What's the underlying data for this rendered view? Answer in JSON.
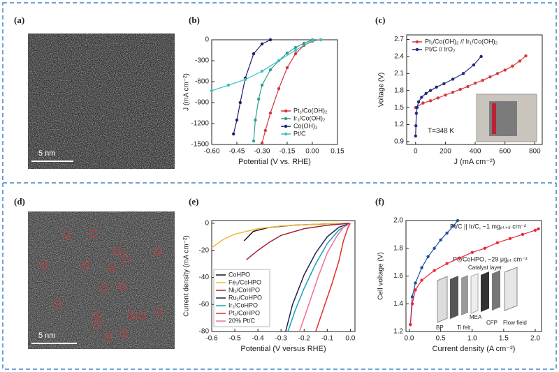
{
  "images": [
    {
      "label": "(a)",
      "scale_bar": "5 nm"
    },
    {
      "label": "(d)",
      "scale_bar": "5 nm"
    }
  ],
  "chart_data": [
    {
      "type": "line",
      "label": "(b)",
      "markers": true,
      "legend": "lower right",
      "xlabel": "Potential (V vs. RHE)",
      "ylabel": "J (mA cm⁻²)",
      "xlim": [
        -0.6,
        0.15
      ],
      "xticks": [
        {
          "value": -0.6,
          "label": "-0.60"
        },
        {
          "value": -0.45,
          "label": "-0.45"
        },
        {
          "value": -0.3,
          "label": "-0.30"
        },
        {
          "value": -0.15,
          "label": "-0.15"
        },
        {
          "value": 0,
          "label": "0.00"
        },
        {
          "value": 0.15,
          "label": "0.15"
        }
      ],
      "ylim": [
        -1500,
        0
      ],
      "yticks": [
        -1500,
        -1200,
        -900,
        -600,
        -300,
        0
      ],
      "series": [
        {
          "name": "Pt₁/Co(OH)₂",
          "color": "#d6333b",
          "x": [
            0.05,
            0.0,
            -0.05,
            -0.1,
            -0.15,
            -0.2,
            -0.25,
            -0.28,
            -0.3
          ],
          "values": [
            0,
            -20,
            -80,
            -200,
            -400,
            -700,
            -1050,
            -1300,
            -1480
          ]
        },
        {
          "name": "Ir₁/Co(OH)₂",
          "color": "#2e9e8e",
          "x": [
            0.0,
            -0.05,
            -0.1,
            -0.15,
            -0.2,
            -0.25,
            -0.3,
            -0.32,
            -0.34,
            -0.35
          ],
          "values": [
            0,
            -50,
            -110,
            -190,
            -300,
            -430,
            -650,
            -850,
            -1150,
            -1450
          ]
        },
        {
          "name": "Co(OH)₂",
          "color": "#1c1f6e",
          "x": [
            -0.25,
            -0.3,
            -0.35,
            -0.4,
            -0.43,
            -0.45,
            -0.47
          ],
          "values": [
            0,
            -60,
            -200,
            -550,
            -900,
            -1150,
            -1350
          ]
        },
        {
          "name": "Pt/C",
          "color": "#3bbfbf",
          "x": [
            0.05,
            0.0,
            -0.1,
            -0.2,
            -0.3,
            -0.4,
            -0.5,
            -0.6
          ],
          "values": [
            0,
            -10,
            -150,
            -300,
            -450,
            -570,
            -650,
            -730
          ]
        }
      ]
    },
    {
      "type": "line",
      "label": "(c)",
      "markers": true,
      "legend": "upper left",
      "xlabel": "J (mA cm⁻²)",
      "ylabel": "Voltage (V)",
      "annotation": "T=348 K",
      "xlim": [
        -60,
        850
      ],
      "xticks": [
        0,
        200,
        400,
        600,
        800
      ],
      "ylim": [
        0.85,
        2.78
      ],
      "yticks": [
        0.9,
        1.2,
        1.5,
        1.8,
        2.1,
        2.4,
        2.7
      ],
      "series": [
        {
          "name": "Pt₁/Co(OH)₂ // Ir₁/Co(OH)₂",
          "color": "#d43a3a",
          "x": [
            0,
            50,
            100,
            150,
            200,
            250,
            300,
            350,
            400,
            450,
            500,
            550,
            600,
            650,
            700,
            740
          ],
          "values": [
            1.5,
            1.58,
            1.62,
            1.67,
            1.72,
            1.77,
            1.82,
            1.87,
            1.93,
            1.98,
            2.04,
            2.1,
            2.16,
            2.23,
            2.32,
            2.41
          ]
        },
        {
          "name": "Pt/C // IrO₂",
          "color": "#1f2a7a",
          "x": [
            0,
            2,
            5,
            10,
            20,
            40,
            70,
            100,
            140,
            190,
            250,
            320,
            390,
            440
          ],
          "values": [
            1.0,
            1.18,
            1.4,
            1.5,
            1.6,
            1.68,
            1.75,
            1.8,
            1.86,
            1.92,
            2.0,
            2.1,
            2.25,
            2.4
          ]
        }
      ]
    },
    {
      "type": "line",
      "label": "(e)",
      "markers": false,
      "legend": "lower left",
      "xlabel": "Potential (V versus RHE)",
      "ylabel": "Current density (mA cm⁻²)",
      "xlim": [
        -0.6,
        0.02
      ],
      "xticks": [
        -0.6,
        -0.5,
        -0.4,
        -0.3,
        -0.2,
        -0.1,
        {
          "value": 0,
          "label": "0.0"
        }
      ],
      "ylim": [
        -80,
        2
      ],
      "yticks": [
        -80,
        -60,
        -40,
        -20,
        0
      ],
      "series": [
        {
          "name": "CoHPO",
          "color": "#111111",
          "x": [
            -0.46,
            -0.42,
            -0.35,
            -0.25,
            -0.1,
            0
          ],
          "values": [
            -13,
            -6,
            -3,
            -1.5,
            -0.5,
            0
          ]
        },
        {
          "name": "Fe₁/CoHPO",
          "color": "#f2b632",
          "x": [
            -0.6,
            -0.55,
            -0.5,
            -0.4,
            -0.3,
            -0.15,
            0
          ],
          "values": [
            -18,
            -12,
            -8,
            -4,
            -2,
            -0.7,
            0
          ]
        },
        {
          "name": "Ni₁/CoHPO",
          "color": "#a3223a",
          "x": [
            -0.45,
            -0.4,
            -0.35,
            -0.3,
            -0.2,
            -0.1,
            0
          ],
          "values": [
            -27,
            -20,
            -14,
            -9,
            -4,
            -1.5,
            0
          ]
        },
        {
          "name": "Ru₁/CoHPO",
          "color": "#1a2550",
          "x": [
            -0.28,
            -0.25,
            -0.2,
            -0.15,
            -0.1,
            -0.05,
            0
          ],
          "values": [
            -80,
            -60,
            -38,
            -22,
            -10,
            -3,
            0
          ]
        },
        {
          "name": "Ir₁/CoHPO",
          "color": "#17a2b8",
          "x": [
            -0.27,
            -0.24,
            -0.2,
            -0.15,
            -0.1,
            -0.05,
            0
          ],
          "values": [
            -80,
            -65,
            -48,
            -30,
            -15,
            -5,
            0
          ]
        },
        {
          "name": "Pt₁/CoHPO",
          "color": "#e03030",
          "x": [
            -0.15,
            -0.12,
            -0.08,
            -0.05,
            -0.03,
            -0.01,
            0
          ],
          "values": [
            -80,
            -65,
            -45,
            -28,
            -13,
            -3,
            0
          ]
        },
        {
          "name": "20% Pt/C",
          "color": "#f06f9a",
          "x": [
            -0.22,
            -0.18,
            -0.14,
            -0.1,
            -0.06,
            -0.03,
            0
          ],
          "values": [
            -80,
            -60,
            -40,
            -22,
            -10,
            -3,
            0
          ]
        }
      ]
    },
    {
      "type": "line",
      "label": "(f)",
      "markers": true,
      "xlabel": "Current density (A cm⁻²)",
      "ylabel": "Cell voltage (V)",
      "annotations": [
        "Pt/C || Ir/C, ~1 mgₚₜ₊ᵢᵣ cm⁻²",
        "Pt₁/CoHPO, ~29 μgₚₜ cm⁻²"
      ],
      "inset_labels": [
        "Catalyst layer",
        "MEA",
        "BP",
        "Ti felt",
        "CFP",
        "Flow field"
      ],
      "xlim": [
        -0.05,
        2.1
      ],
      "xticks": [
        {
          "value": 0,
          "label": "0.0"
        },
        0.5,
        {
          "value": 1,
          "label": "1.0"
        },
        1.5,
        {
          "value": 2,
          "label": "2.0"
        }
      ],
      "ylim": [
        1.2,
        2.0
      ],
      "yticks": [
        1.2,
        1.4,
        1.6,
        1.8,
        {
          "value": 2,
          "label": "2.0"
        }
      ],
      "series": [
        {
          "color": "#1f4e9c",
          "x": [
            0.02,
            0.05,
            0.1,
            0.2,
            0.3,
            0.4,
            0.5,
            0.6,
            0.7,
            0.77
          ],
          "values": [
            1.25,
            1.45,
            1.55,
            1.66,
            1.74,
            1.8,
            1.86,
            1.91,
            1.96,
            2.0
          ]
        },
        {
          "color": "#e8273a",
          "x": [
            0.02,
            0.05,
            0.1,
            0.2,
            0.4,
            0.6,
            0.8,
            1.0,
            1.2,
            1.4,
            1.6,
            1.8,
            2.0,
            2.05
          ],
          "values": [
            1.25,
            1.4,
            1.5,
            1.57,
            1.64,
            1.69,
            1.73,
            1.77,
            1.8,
            1.84,
            1.87,
            1.9,
            1.93,
            1.94
          ]
        }
      ]
    }
  ]
}
